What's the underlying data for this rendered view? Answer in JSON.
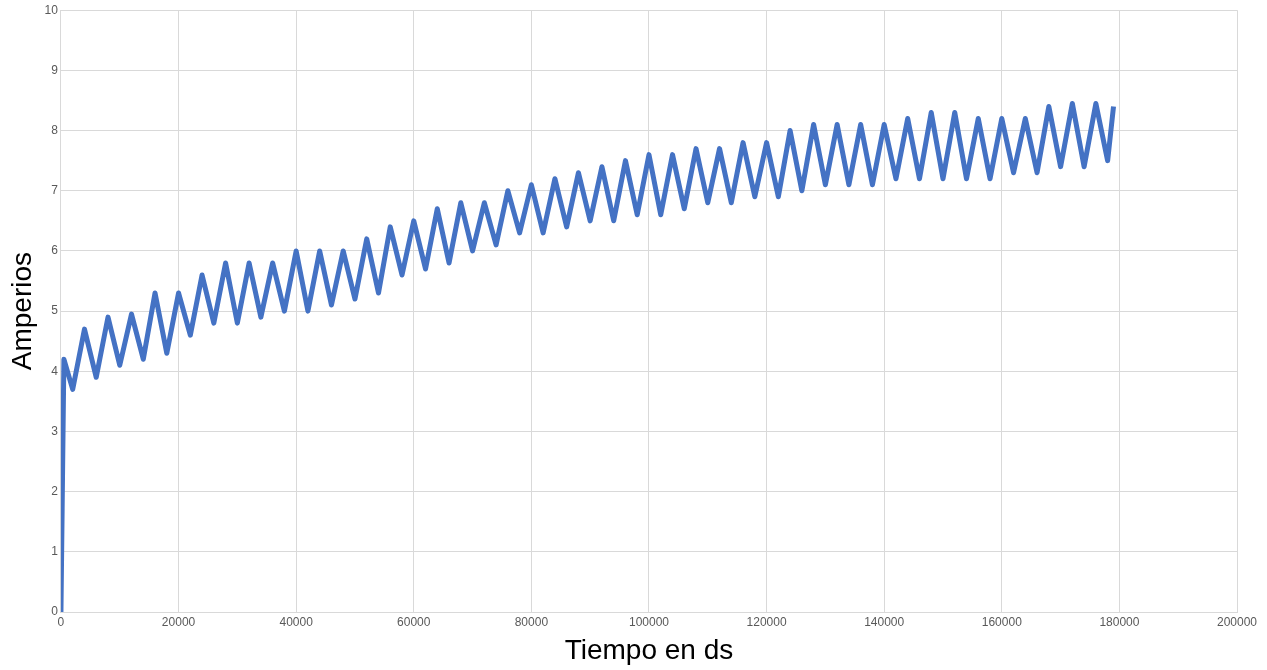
{
  "chart_data": {
    "type": "line",
    "xlabel": "Tiempo en ds",
    "ylabel": "Amperios",
    "xlim": [
      0,
      200000
    ],
    "xticks": [
      0,
      20000,
      40000,
      60000,
      80000,
      100000,
      120000,
      140000,
      160000,
      180000,
      200000
    ],
    "ylim": [
      0,
      10
    ],
    "yticks": [
      0,
      1,
      2,
      3,
      4,
      5,
      6,
      7,
      8,
      9,
      10
    ],
    "grid": true,
    "legend": false,
    "marker": "none",
    "line_style": "solid",
    "series": [
      {
        "color": "#4472c4",
        "x": [
          0,
          500,
          2000,
          4000,
          6000,
          8000,
          10000,
          12000,
          14000,
          16000,
          18000,
          20000,
          22000,
          24000,
          26000,
          28000,
          30000,
          32000,
          34000,
          36000,
          38000,
          40000,
          42000,
          44000,
          46000,
          48000,
          50000,
          52000,
          54000,
          56000,
          58000,
          60000,
          62000,
          64000,
          66000,
          68000,
          70000,
          72000,
          74000,
          76000,
          78000,
          80000,
          82000,
          84000,
          86000,
          88000,
          90000,
          92000,
          94000,
          96000,
          98000,
          100000,
          102000,
          104000,
          106000,
          108000,
          110000,
          112000,
          114000,
          116000,
          118000,
          120000,
          122000,
          124000,
          126000,
          128000,
          130000,
          132000,
          134000,
          136000,
          138000,
          140000,
          142000,
          144000,
          146000,
          148000,
          150000,
          152000,
          154000,
          156000,
          158000,
          160000,
          162000,
          164000,
          166000,
          168000,
          170000,
          172000,
          174000,
          176000,
          178000,
          179000
        ],
        "values": [
          0,
          4.2,
          3.7,
          4.7,
          3.9,
          4.9,
          4.1,
          4.95,
          4.2,
          5.3,
          4.3,
          5.3,
          4.6,
          5.6,
          4.8,
          5.8,
          4.8,
          5.8,
          4.9,
          5.8,
          5.0,
          6.0,
          5.0,
          6.0,
          5.1,
          6.0,
          5.2,
          6.2,
          5.3,
          6.4,
          5.6,
          6.5,
          5.7,
          6.7,
          5.8,
          6.8,
          6.0,
          6.8,
          6.1,
          7.0,
          6.3,
          7.1,
          6.3,
          7.2,
          6.4,
          7.3,
          6.5,
          7.4,
          6.5,
          7.5,
          6.6,
          7.6,
          6.6,
          7.6,
          6.7,
          7.7,
          6.8,
          7.7,
          6.8,
          7.8,
          6.9,
          7.8,
          6.9,
          8.0,
          7.0,
          8.1,
          7.1,
          8.1,
          7.1,
          8.1,
          7.1,
          8.1,
          7.2,
          8.2,
          7.2,
          8.3,
          7.2,
          8.3,
          7.2,
          8.2,
          7.2,
          8.2,
          7.3,
          8.2,
          7.3,
          8.4,
          7.4,
          8.45,
          7.4,
          8.45,
          7.5,
          8.4
        ]
      }
    ]
  }
}
